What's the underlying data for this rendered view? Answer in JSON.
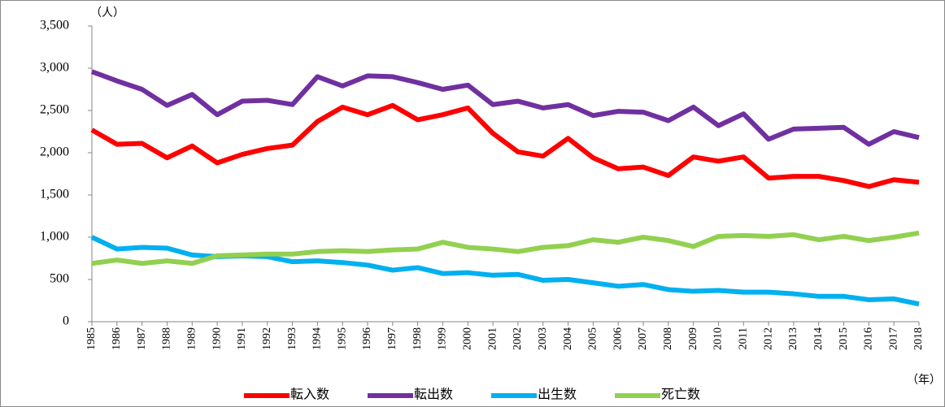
{
  "chart_data": {
    "type": "line",
    "y_unit": "（人）",
    "x_unit": "（年）",
    "x": [
      1985,
      1986,
      1987,
      1988,
      1989,
      1990,
      1991,
      1992,
      1993,
      1994,
      1995,
      1996,
      1997,
      1998,
      1999,
      2000,
      2001,
      2002,
      2003,
      2004,
      2005,
      2006,
      2007,
      2008,
      2009,
      2010,
      2011,
      2012,
      2013,
      2014,
      2015,
      2016,
      2017,
      2018
    ],
    "xlim": [
      1985,
      2018
    ],
    "ylim": [
      0,
      3500
    ],
    "yticks": [
      0,
      500,
      {
        "value": 1000,
        "label": "1,000"
      },
      {
        "value": 1500,
        "label": "1,500"
      },
      {
        "value": 2000,
        "label": "2,000"
      },
      {
        "value": 2500,
        "label": "2,500"
      },
      {
        "value": 3000,
        "label": "3,000"
      },
      {
        "value": 3500,
        "label": "3,500"
      }
    ],
    "series": [
      {
        "name": "転入数",
        "color": "#ff0000",
        "values": [
          2270,
          2100,
          2110,
          1940,
          2080,
          1880,
          1980,
          2050,
          2090,
          2370,
          2540,
          2450,
          2560,
          2390,
          2450,
          2530,
          2230,
          2010,
          1960,
          2170,
          1940,
          1810,
          1830,
          1730,
          1950,
          1900,
          1950,
          1700,
          1720,
          1720,
          1670,
          1600,
          1680,
          1650
        ]
      },
      {
        "name": "転出数",
        "color": "#7030a0",
        "values": [
          2960,
          2850,
          2750,
          2560,
          2690,
          2450,
          2610,
          2620,
          2570,
          2900,
          2790,
          2910,
          2900,
          2830,
          2750,
          2800,
          2570,
          2610,
          2530,
          2570,
          2440,
          2490,
          2480,
          2380,
          2540,
          2320,
          2460,
          2160,
          2280,
          2290,
          2300,
          2100,
          2250,
          2180
        ]
      },
      {
        "name": "出生数",
        "color": "#00b0f0",
        "values": [
          1000,
          860,
          880,
          870,
          790,
          770,
          780,
          770,
          710,
          720,
          700,
          670,
          610,
          640,
          570,
          580,
          550,
          560,
          490,
          500,
          460,
          420,
          440,
          380,
          360,
          370,
          350,
          350,
          330,
          300,
          300,
          260,
          270,
          210
        ]
      },
      {
        "name": "死亡数",
        "color": "#92d050",
        "values": [
          690,
          730,
          690,
          720,
          690,
          780,
          790,
          800,
          800,
          830,
          840,
          830,
          850,
          860,
          940,
          880,
          860,
          830,
          880,
          900,
          970,
          940,
          1000,
          960,
          890,
          1010,
          1020,
          1010,
          1030,
          970,
          1010,
          960,
          1000,
          1050
        ]
      }
    ]
  }
}
